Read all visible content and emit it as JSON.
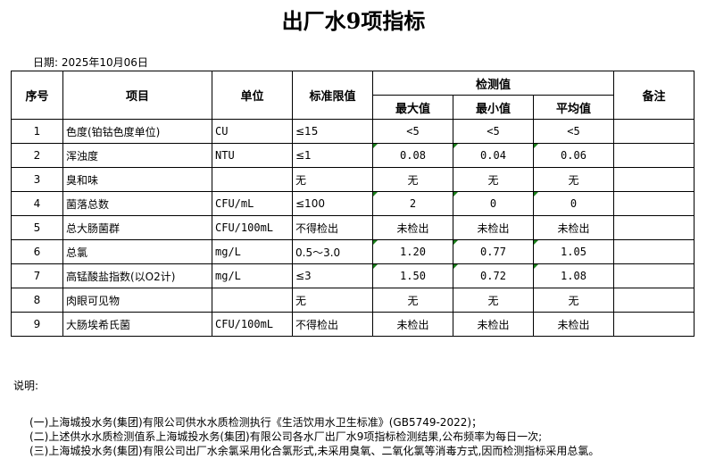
{
  "title": "出厂水9项指标",
  "date": "日期: 2025年10月06日",
  "headers": {
    "no": "序号",
    "item": "项目",
    "unit": "单位",
    "limit": "标准限值",
    "measured": "检测值",
    "max": "最大值",
    "min": "最小值",
    "avg": "平均值",
    "remark": "备注"
  },
  "rows": [
    {
      "no": "1",
      "item": "色度(铂钴色度单位)",
      "unit": "CU",
      "limit": "≤15",
      "max": "<5",
      "min": "<5",
      "avg": "<5",
      "flag": false
    },
    {
      "no": "2",
      "item": "浑浊度",
      "unit": "NTU",
      "limit": "≤1",
      "max": "0.08",
      "min": "0.04",
      "avg": "0.06",
      "flag": true
    },
    {
      "no": "3",
      "item": "臭和味",
      "unit": "",
      "limit": "无",
      "max": "无",
      "min": "无",
      "avg": "无",
      "flag": false
    },
    {
      "no": "4",
      "item": "菌落总数",
      "unit": "CFU/mL",
      "limit": "≤100",
      "max": "2",
      "min": "0",
      "avg": "0",
      "flag": true
    },
    {
      "no": "5",
      "item": "总大肠菌群",
      "unit": "CFU/100mL",
      "limit": "不得检出",
      "max": "未检出",
      "min": "未检出",
      "avg": "未检出",
      "flag": false
    },
    {
      "no": "6",
      "item": "总氯",
      "unit": "mg/L",
      "limit": "0.5～3.0",
      "max": "1.20",
      "min": "0.77",
      "avg": "1.05",
      "flag": true
    },
    {
      "no": "7",
      "item": "高锰酸盐指数(以O2计)",
      "unit": "mg/L",
      "limit": "≤3",
      "max": "1.50",
      "min": "0.72",
      "avg": "1.08",
      "flag": true
    },
    {
      "no": "8",
      "item": "肉眼可见物",
      "unit": "",
      "limit": "无",
      "max": "无",
      "min": "无",
      "avg": "无",
      "flag": false
    },
    {
      "no": "9",
      "item": "大肠埃希氏菌",
      "unit": "CFU/100mL",
      "limit": "不得检出",
      "max": "未检出",
      "min": "未检出",
      "avg": "未检出",
      "flag": false
    }
  ],
  "notes": {
    "label": "说明:",
    "items": [
      "(一)上海城投水务(集团)有限公司供水水质检测执行《生活饮用水卫生标准》(GB5749-2022)；",
      "(二)上述供水水质检测值系上海城投水务(集团)有限公司各水厂出厂水9项指标检测结果,公布频率为每日一次;",
      "(三)上海城投水务(集团)有限公司出厂水余氯采用化合氯形式,未采用臭氧、二氧化氯等消毒方式,因而检测指标采用总氯。"
    ]
  },
  "colors": {
    "error_indicator": "#1a7f1a"
  }
}
